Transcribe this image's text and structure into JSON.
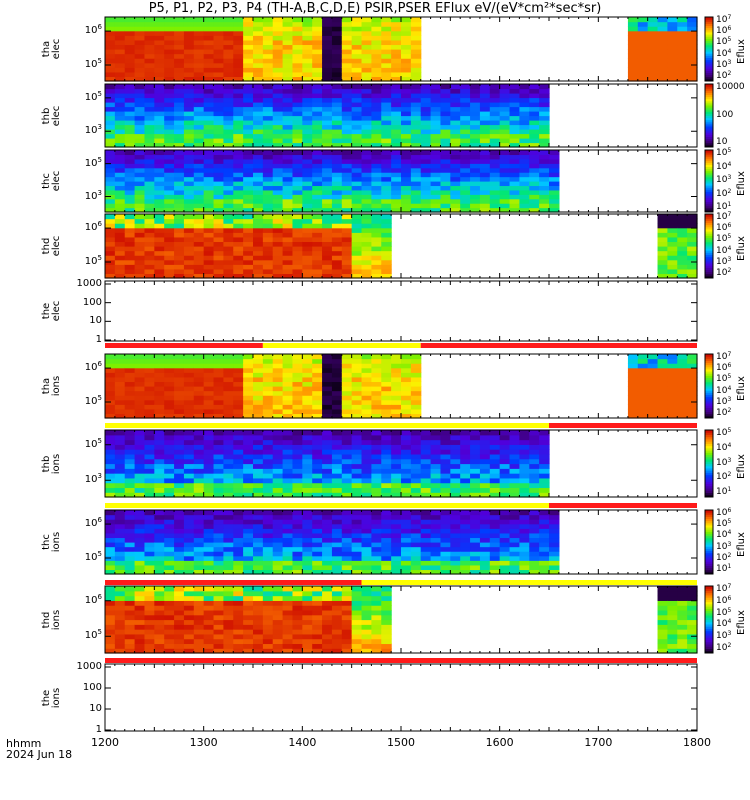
{
  "title": "P5, P1, P2, P3, P4 (TH-A,B,C,D,E) PSIR,PSER EFlux eV/(eV*cm²*sec*sr)",
  "footer": {
    "time_label": "hhmm",
    "date_label": "2024 Jun 18"
  },
  "chart_data": {
    "type": "heatmap",
    "x_range": [
      1200,
      1800
    ],
    "x_ticks": [
      "1200",
      "1300",
      "1400",
      "1500",
      "1600",
      "1700",
      "1800"
    ],
    "panels": [
      {
        "label": [
          "tha",
          "elec"
        ],
        "y_ticks": [
          "10^6",
          "10^5"
        ],
        "data_end": 1520,
        "resume": 1730,
        "colorbar_ticks": [
          "10^7",
          "10^6",
          "10^5",
          "10^4",
          "10^3",
          "10^2"
        ],
        "colorbar_title": "Eflux"
      },
      {
        "label": [
          "thb",
          "elec"
        ],
        "y_ticks": [
          "10^5",
          "10^3"
        ],
        "data_end": 1650,
        "colorbar_ticks": [
          "10000",
          "100",
          "10"
        ]
      },
      {
        "label": [
          "thc",
          "elec"
        ],
        "y_ticks": [
          "10^5",
          "10^3"
        ],
        "data_end": 1655,
        "colorbar_ticks": [
          "10^5",
          "10^4",
          "10^3",
          "10^2",
          "10^1"
        ],
        "colorbar_title": "Eflux"
      },
      {
        "label": [
          "thd",
          "elec"
        ],
        "y_ticks": [
          "10^6",
          "10^5"
        ],
        "data_end": 1487,
        "resume": 1757,
        "colorbar_ticks": [
          "10^7",
          "10^6",
          "10^5",
          "10^4",
          "10^3",
          "10^2"
        ],
        "colorbar_title": "Eflux"
      },
      {
        "label": [
          "the",
          "elec"
        ],
        "y_ticks": [
          "1000",
          "100",
          "10",
          "1"
        ],
        "empty": true
      },
      {
        "label": [
          "tha",
          "ions"
        ],
        "y_ticks": [
          "10^6",
          "10^5"
        ],
        "data_end": 1520,
        "resume": 1730,
        "colorbar_ticks": [
          "10^7",
          "10^6",
          "10^5",
          "10^4",
          "10^3",
          "10^2"
        ],
        "colorbar_title": "Eflux"
      },
      {
        "label": [
          "thb",
          "ions"
        ],
        "y_ticks": [
          "10^5",
          "10^3"
        ],
        "data_end": 1650,
        "colorbar_ticks": [
          "10^5",
          "10^4",
          "10^3",
          "10^2",
          "10^1"
        ],
        "colorbar_title": "Eflux"
      },
      {
        "label": [
          "thc",
          "ions"
        ],
        "y_ticks": [
          "10^6",
          "10^5"
        ],
        "data_end": 1655,
        "colorbar_ticks": [
          "10^6",
          "10^5",
          "10^4",
          "10^3",
          "10^2",
          "10^1"
        ],
        "colorbar_title": "Eflux"
      },
      {
        "label": [
          "thd",
          "ions"
        ],
        "y_ticks": [
          "10^6",
          "10^5"
        ],
        "data_end": 1487,
        "resume": 1757,
        "colorbar_ticks": [
          "10^7",
          "10^6",
          "10^5",
          "10^4",
          "10^3",
          "10^2"
        ],
        "colorbar_title": "Eflux"
      },
      {
        "label": [
          "the",
          "ions"
        ],
        "y_ticks": [
          "1000",
          "100",
          "10",
          "1"
        ],
        "empty": true
      }
    ],
    "mode_bars": [
      {
        "segments": [
          [
            1200,
            1360,
            "red"
          ],
          [
            1360,
            1520,
            "yellow"
          ],
          [
            1520,
            1800,
            "red"
          ]
        ]
      },
      {
        "segments": [
          [
            1200,
            1650,
            "yellow"
          ],
          [
            1650,
            1800,
            "red"
          ]
        ]
      },
      {
        "segments": [
          [
            1200,
            1650,
            "yellow"
          ],
          [
            1650,
            1800,
            "red"
          ]
        ]
      },
      {
        "segments": [
          [
            1200,
            1460,
            "red"
          ],
          [
            1460,
            1800,
            "yellow"
          ]
        ]
      },
      {
        "segments": [
          [
            1200,
            1800,
            "red"
          ]
        ]
      }
    ],
    "colors": {
      "red": "#ff1a1a",
      "yellow": "#ffff00"
    }
  }
}
